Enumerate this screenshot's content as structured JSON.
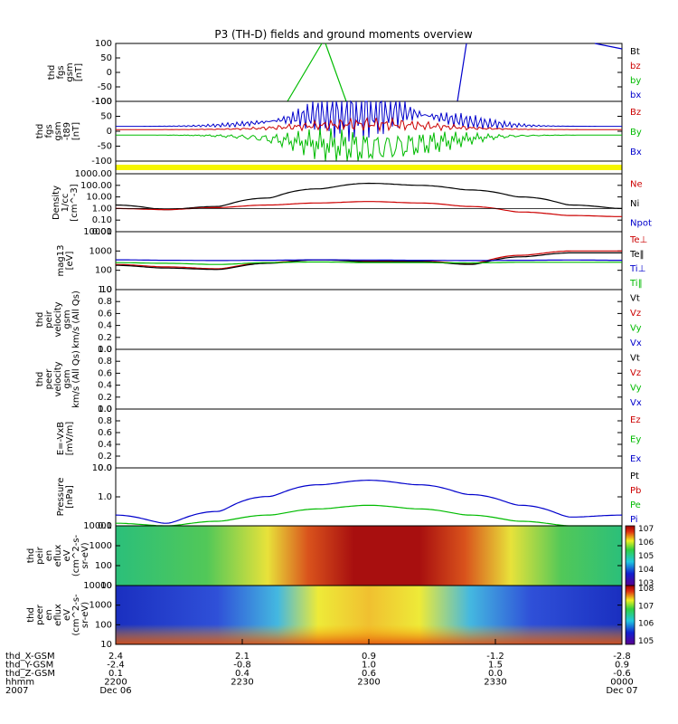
{
  "title": "P3 (TH-D) fields and ground moments overview",
  "panels": [
    {
      "id": "fgs",
      "ylabel": [
        "thd",
        "fgs",
        "gsm",
        "[nT]"
      ],
      "ticks": [
        "100",
        "50",
        "0",
        "-50",
        "-100"
      ],
      "legend": [
        {
          "text": "Bt",
          "color": "#000000"
        },
        {
          "text": "bz",
          "color": "#cc0000"
        },
        {
          "text": "by",
          "color": "#00bb00"
        },
        {
          "text": "bx",
          "color": "#0000cc"
        }
      ]
    },
    {
      "id": "fgs_t89",
      "ylabel": [
        "thd",
        "fgs",
        "gsm",
        "-t89",
        "[nT]"
      ],
      "ticks": [
        "100",
        "50",
        "0",
        "-50",
        "-100"
      ],
      "legend": [
        {
          "text": "Bz",
          "color": "#cc0000"
        },
        {
          "text": "By",
          "color": "#00bb00"
        },
        {
          "text": "Bx",
          "color": "#0000cc"
        }
      ]
    },
    {
      "id": "bar",
      "ylabel": [],
      "ticks": [],
      "legend": []
    },
    {
      "id": "density",
      "ylabel": [
        "Density",
        "1/cc",
        "[cm^-3]"
      ],
      "ticks": [
        "1000.00",
        "100.00",
        "10.00",
        "1.00",
        "0.10",
        "0.01"
      ],
      "legend": [
        {
          "text": "Ne",
          "color": "#cc0000"
        },
        {
          "text": "Ni",
          "color": "#000000"
        },
        {
          "text": "Npot",
          "color": "#0000cc"
        }
      ]
    },
    {
      "id": "temp",
      "ylabel": [
        "mag13",
        "[eV]"
      ],
      "ticks": [
        "10000",
        "1000",
        "100",
        "10"
      ],
      "legend": [
        {
          "text": "Te⊥",
          "color": "#cc0000"
        },
        {
          "text": "Te‖",
          "color": "#000000"
        },
        {
          "text": "Ti⊥",
          "color": "#0000cc"
        },
        {
          "text": "Ti‖",
          "color": "#00bb00"
        }
      ]
    },
    {
      "id": "peir_vel",
      "ylabel": [
        "thd",
        "peir",
        "velocity",
        "gsm",
        "km/s (All Qs)"
      ],
      "ticks": [
        "1.0",
        "0.8",
        "0.6",
        "0.4",
        "0.2",
        "0.0"
      ],
      "legend": [
        {
          "text": "Vt",
          "color": "#000000"
        },
        {
          "text": "Vz",
          "color": "#cc0000"
        },
        {
          "text": "Vy",
          "color": "#00bb00"
        },
        {
          "text": "Vx",
          "color": "#0000cc"
        }
      ]
    },
    {
      "id": "peer_vel",
      "ylabel": [
        "thd",
        "peer",
        "velocity",
        "gsm",
        "km/s (All Qs)"
      ],
      "ticks": [
        "1.0",
        "0.8",
        "0.6",
        "0.4",
        "0.2",
        "0.0"
      ],
      "legend": [
        {
          "text": "Vt",
          "color": "#000000"
        },
        {
          "text": "Vz",
          "color": "#cc0000"
        },
        {
          "text": "Vy",
          "color": "#00bb00"
        },
        {
          "text": "Vx",
          "color": "#0000cc"
        }
      ]
    },
    {
      "id": "efield",
      "ylabel": [
        "E=-VxB",
        "[mV/m]"
      ],
      "ticks": [
        "1.0",
        "0.8",
        "0.6",
        "0.4",
        "0.2",
        "0.0"
      ],
      "legend": [
        {
          "text": "Ez",
          "color": "#cc0000"
        },
        {
          "text": "Ey",
          "color": "#00bb00"
        },
        {
          "text": "Ex",
          "color": "#0000cc"
        }
      ]
    },
    {
      "id": "pressure",
      "ylabel": [
        "Pressure",
        "[nPa]"
      ],
      "ticks": [
        "10.0",
        "1.0",
        "0.1"
      ],
      "legend": [
        {
          "text": "Pt",
          "color": "#000000"
        },
        {
          "text": "Pb",
          "color": "#cc0000"
        },
        {
          "text": "Pe",
          "color": "#00bb00"
        },
        {
          "text": "Pi",
          "color": "#0000cc"
        }
      ]
    },
    {
      "id": "peir_spec",
      "ylabel": [
        "thd",
        "peir",
        "en",
        "eflux",
        "eV",
        "(cm^2-s-",
        "sr-eV)"
      ],
      "ticks": [
        "10000",
        "1000",
        "100",
        "10"
      ],
      "legend": []
    },
    {
      "id": "peer_spec",
      "ylabel": [
        "thd",
        "peer",
        "en",
        "eflux",
        "eV",
        "(cm^2-s-",
        "sr-eV)"
      ],
      "ticks": [
        "10000",
        "1000",
        "100",
        "10"
      ],
      "legend": []
    }
  ],
  "colorbars": [
    {
      "labels": [
        "10^7",
        "10^6",
        "10^5",
        "10^4",
        "10^3"
      ]
    },
    {
      "labels": [
        "10^8",
        "10^7",
        "10^6",
        "10^5"
      ]
    }
  ],
  "xaxis": {
    "rows": [
      {
        "label": "thd_X-GSM",
        "values": [
          "2.4",
          "2.1",
          "0.9",
          "-1.2",
          "-2.8"
        ]
      },
      {
        "label": "thd_Y-GSM",
        "values": [
          "-2.4",
          "-0.8",
          "1.0",
          "1.5",
          "0.9"
        ]
      },
      {
        "label": "thd_Z-GSM",
        "values": [
          "0.1",
          "0.4",
          "0.6",
          "0.0",
          "-0.6"
        ]
      },
      {
        "label": "hhmm",
        "values": [
          "2200",
          "2230",
          "2300",
          "2330",
          "0000"
        ]
      },
      {
        "label": "2007",
        "values": [
          "Dec 06",
          "",
          "",
          "",
          "Dec 07"
        ]
      }
    ]
  },
  "chart_data": {
    "type": "line",
    "title": "P3 (TH-D) fields and ground moments overview",
    "x_time": [
      "2007-12-06 22:00",
      "2007-12-06 22:30",
      "2007-12-06 23:00",
      "2007-12-06 23:30",
      "2007-12-07 00:00"
    ],
    "density": {
      "scale": "log",
      "ylim": [
        0.01,
        1000
      ],
      "x": [
        0.0,
        0.1,
        0.2,
        0.3,
        0.4,
        0.5,
        0.6,
        0.7,
        0.8,
        0.9,
        1.0
      ],
      "series": [
        {
          "name": "Ni",
          "values": [
            2.0,
            0.8,
            1.5,
            8,
            50,
            150,
            100,
            40,
            10,
            2,
            1
          ]
        },
        {
          "name": "Ne",
          "values": [
            1.0,
            0.8,
            1.2,
            2,
            3,
            4,
            3,
            1.5,
            0.5,
            0.25,
            0.2
          ]
        }
      ]
    },
    "temperature": {
      "scale": "log",
      "ylim": [
        10,
        10000
      ],
      "x": [
        0.0,
        0.1,
        0.2,
        0.3,
        0.4,
        0.5,
        0.6,
        0.7,
        0.8,
        0.9,
        1.0
      ],
      "series": [
        {
          "name": "Te⊥",
          "values": [
            200,
            150,
            120,
            250,
            350,
            300,
            300,
            220,
            600,
            1000,
            1000
          ]
        },
        {
          "name": "Te‖",
          "values": [
            180,
            130,
            110,
            230,
            350,
            280,
            280,
            200,
            500,
            800,
            800
          ]
        },
        {
          "name": "Ti⊥",
          "values": [
            350,
            330,
            320,
            330,
            350,
            340,
            330,
            320,
            330,
            340,
            330
          ]
        },
        {
          "name": "Ti‖",
          "values": [
            250,
            230,
            200,
            250,
            270,
            250,
            250,
            240,
            260,
            260,
            260
          ]
        }
      ]
    },
    "pressure": {
      "scale": "log",
      "ylim": [
        0.03,
        20
      ],
      "x": [
        0.0,
        0.1,
        0.2,
        0.3,
        0.4,
        0.5,
        0.6,
        0.7,
        0.8,
        0.9,
        1.0
      ],
      "series": [
        {
          "name": "Pi",
          "values": [
            0.1,
            0.04,
            0.15,
            0.8,
            3,
            5,
            3,
            1,
            0.3,
            0.08,
            0.1
          ]
        },
        {
          "name": "Pe",
          "values": [
            0.04,
            0.03,
            0.05,
            0.1,
            0.2,
            0.3,
            0.2,
            0.1,
            0.05,
            0.03,
            0.03
          ]
        }
      ]
    }
  }
}
